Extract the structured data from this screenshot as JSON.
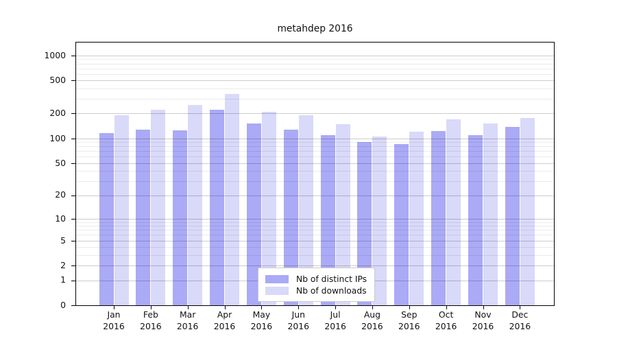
{
  "title": "metahdep 2016",
  "chart_data": {
    "type": "bar",
    "title": "metahdep 2016",
    "categories": [
      "Jan 2016",
      "Feb 2016",
      "Mar 2016",
      "Apr 2016",
      "May 2016",
      "Jun 2016",
      "Jul 2016",
      "Aug 2016",
      "Sep 2016",
      "Oct 2016",
      "Nov 2016",
      "Dec 2016"
    ],
    "series": [
      {
        "name": "Nb of distinct IPs",
        "color": "#aaaaf6",
        "values": [
          115,
          127,
          126,
          220,
          151,
          128,
          110,
          90,
          86,
          123,
          110,
          137
        ]
      },
      {
        "name": "Nb of downloads",
        "color": "#d9d9f9",
        "values": [
          190,
          222,
          252,
          342,
          210,
          192,
          149,
          106,
          120,
          170,
          150,
          176
        ]
      }
    ],
    "yscale": "log1p",
    "ylim": [
      0,
      1450
    ],
    "yticks": [
      0,
      1,
      2,
      5,
      10,
      20,
      50,
      100,
      200,
      500,
      1000
    ],
    "y_minor_gridlines": [
      3,
      4,
      6,
      7,
      8,
      9,
      30,
      40,
      60,
      70,
      80,
      90,
      300,
      400,
      600,
      700,
      800,
      900
    ],
    "grid": true,
    "legend_position": "inside-bottom-center",
    "colors": {
      "axis": "#000000",
      "grid_major": "#cccccc",
      "grid_minor": "#ebebeb",
      "background": "#ffffff",
      "series_distinct_ips": "#aaaaf6",
      "series_downloads": "#d9d9f9"
    }
  }
}
